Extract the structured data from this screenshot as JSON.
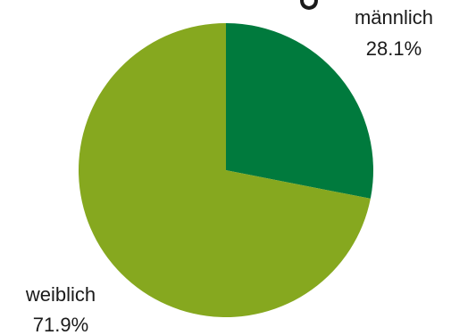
{
  "chart_data": {
    "type": "pie",
    "slices": [
      {
        "label": "männlich",
        "value": 28.1,
        "value_text": "28.1%",
        "color": "#007a3d"
      },
      {
        "label": "weiblich",
        "value": 71.9,
        "value_text": "71.9%",
        "color": "#86a81f"
      }
    ],
    "start_angle_deg": 0,
    "direction": "clockwise",
    "legend": "none"
  }
}
